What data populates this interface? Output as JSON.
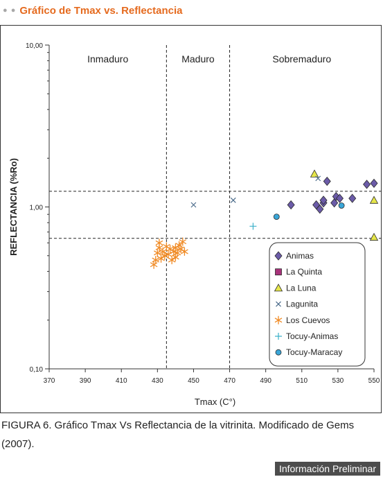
{
  "header": {
    "title": "Gráfico de Tmax vs. Reflectancia"
  },
  "chart_data": {
    "type": "scatter",
    "xlabel": "Tmax (C°)",
    "ylabel": "REFLECTANCIA (%Ro)",
    "xlim": [
      370,
      550
    ],
    "ylim": [
      0.1,
      10
    ],
    "yscale": "log",
    "x_ticks": [
      "370",
      "390",
      "410",
      "430",
      "450",
      "470",
      "490",
      "510",
      "530",
      "550"
    ],
    "y_ticks": [
      {
        "v": 10,
        "label": "10,00"
      },
      {
        "v": 1,
        "label": "1,00"
      },
      {
        "v": 0.1,
        "label": "0,10"
      }
    ],
    "zones": [
      "Inmaduro",
      "Maduro",
      "Sobremaduro"
    ],
    "vlines": [
      435,
      470
    ],
    "hlines": [
      0.64,
      1.25
    ],
    "legend_position": "bottom-right",
    "series": [
      {
        "name": "Animas",
        "marker": "diamond",
        "color": "#6b5ba8",
        "points": [
          [
            504,
            1.03
          ],
          [
            518,
            1.03
          ],
          [
            520,
            0.97
          ],
          [
            522,
            1.06
          ],
          [
            522,
            1.1
          ],
          [
            524,
            1.44
          ],
          [
            528,
            1.06
          ],
          [
            529,
            1.16
          ],
          [
            531,
            1.13
          ],
          [
            538,
            1.13
          ],
          [
            546,
            1.38
          ],
          [
            550,
            1.4
          ]
        ]
      },
      {
        "name": "La Quinta",
        "marker": "square",
        "color": "#a8327a",
        "points": []
      },
      {
        "name": "La Luna",
        "marker": "triangle",
        "color": "#e6e64a",
        "points": [
          [
            517,
            1.6
          ],
          [
            550,
            1.1
          ],
          [
            550,
            0.65
          ]
        ]
      },
      {
        "name": "Lagunita",
        "marker": "x",
        "color": "#4a6b8a",
        "points": [
          [
            450,
            1.03
          ],
          [
            472,
            1.1
          ],
          [
            519,
            1.5
          ]
        ]
      },
      {
        "name": "Los Cuevos",
        "marker": "asterisk",
        "color": "#f08a24",
        "points": [
          [
            428,
            0.44
          ],
          [
            429,
            0.47
          ],
          [
            430,
            0.52
          ],
          [
            431,
            0.56
          ],
          [
            431,
            0.6
          ],
          [
            432,
            0.48
          ],
          [
            433,
            0.53
          ],
          [
            434,
            0.5
          ],
          [
            435,
            0.57
          ],
          [
            436,
            0.51
          ],
          [
            437,
            0.55
          ],
          [
            438,
            0.47
          ],
          [
            439,
            0.53
          ],
          [
            440,
            0.49
          ],
          [
            440,
            0.56
          ],
          [
            441,
            0.52
          ],
          [
            442,
            0.58
          ],
          [
            443,
            0.55
          ],
          [
            444,
            0.61
          ],
          [
            445,
            0.53
          ]
        ]
      },
      {
        "name": "Tocuy-Animas",
        "marker": "plus",
        "color": "#3bb0c9",
        "points": [
          [
            483,
            0.76
          ]
        ]
      },
      {
        "name": "Tocuy-Maracay",
        "marker": "circle",
        "color": "#3aa6d8",
        "points": [
          [
            496,
            0.87
          ],
          [
            532,
            1.02
          ]
        ]
      }
    ]
  },
  "caption": "FIGURA 6. Gráfico Tmax Vs Reflectancia de la vitrinita. Modificado de Gems (2007).",
  "badge": "Información Preliminar"
}
